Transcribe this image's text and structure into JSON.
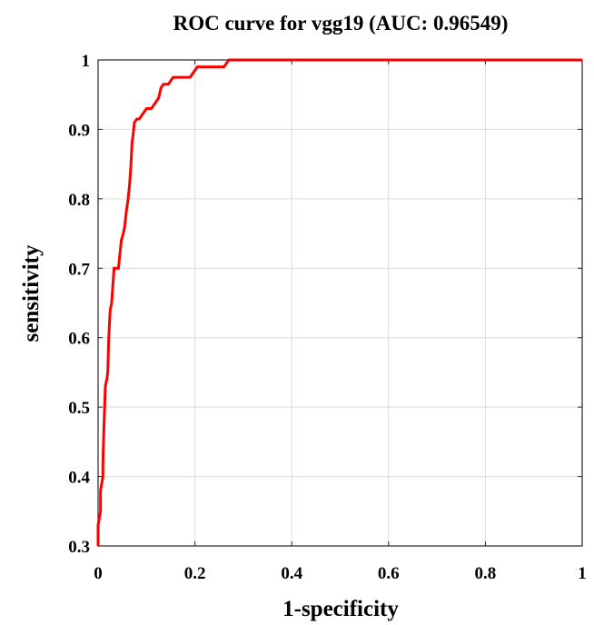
{
  "chart_data": {
    "type": "line",
    "title": "ROC curve for vgg19 (AUC: 0.96549)",
    "xlabel": "1-specificity",
    "ylabel": "sensitivity",
    "xlim": [
      0,
      1
    ],
    "ylim": [
      0.3,
      1
    ],
    "xticks": [
      0,
      0.2,
      0.4,
      0.6,
      0.8,
      1
    ],
    "xtick_labels": [
      "0",
      "0.2",
      "0.4",
      "0.6",
      "0.8",
      "1"
    ],
    "yticks": [
      0.3,
      0.4,
      0.5,
      0.6,
      0.7,
      0.8,
      0.9,
      1
    ],
    "ytick_labels": [
      "0.3",
      "0.4",
      "0.5",
      "0.6",
      "0.7",
      "0.8",
      "0.9",
      "1"
    ],
    "grid": true,
    "series": [
      {
        "color": "#ff0000",
        "x": [
          0,
          0,
          0.005,
          0.005,
          0.01,
          0.01,
          0.012,
          0.015,
          0.018,
          0.02,
          0.022,
          0.025,
          0.028,
          0.03,
          0.033,
          0.035,
          0.038,
          0.042,
          0.045,
          0.048,
          0.052,
          0.055,
          0.058,
          0.062,
          0.065,
          0.068,
          0.07,
          0.072,
          0.075,
          0.08,
          0.085,
          0.09,
          0.095,
          0.1,
          0.105,
          0.11,
          0.115,
          0.12,
          0.125,
          0.13,
          0.135,
          0.14,
          0.145,
          0.15,
          0.155,
          0.16,
          0.165,
          0.17,
          0.175,
          0.18,
          0.185,
          0.19,
          0.195,
          0.2,
          0.205,
          0.21,
          0.215,
          0.22,
          0.23,
          0.24,
          0.25,
          0.26,
          0.265,
          0.27,
          0.275,
          0.28,
          0.3,
          0.4,
          0.5,
          0.6,
          0.7,
          0.8,
          0.9,
          1
        ],
        "y": [
          0.3,
          0.33,
          0.35,
          0.38,
          0.4,
          0.42,
          0.47,
          0.53,
          0.54,
          0.55,
          0.6,
          0.64,
          0.65,
          0.67,
          0.7,
          0.7,
          0.7,
          0.7,
          0.72,
          0.74,
          0.75,
          0.76,
          0.78,
          0.8,
          0.82,
          0.85,
          0.88,
          0.89,
          0.91,
          0.915,
          0.915,
          0.92,
          0.925,
          0.93,
          0.93,
          0.93,
          0.935,
          0.94,
          0.945,
          0.96,
          0.965,
          0.965,
          0.965,
          0.97,
          0.975,
          0.975,
          0.975,
          0.975,
          0.975,
          0.975,
          0.975,
          0.975,
          0.98,
          0.985,
          0.99,
          0.99,
          0.99,
          0.99,
          0.99,
          0.99,
          0.99,
          0.99,
          0.995,
          1,
          1,
          1,
          1,
          1,
          1,
          1,
          1,
          1,
          1,
          1
        ]
      }
    ],
    "colors": {
      "curve": "#ff0000",
      "grid": "#dcdcdc",
      "axes": "#262626",
      "text": "#000000"
    }
  }
}
